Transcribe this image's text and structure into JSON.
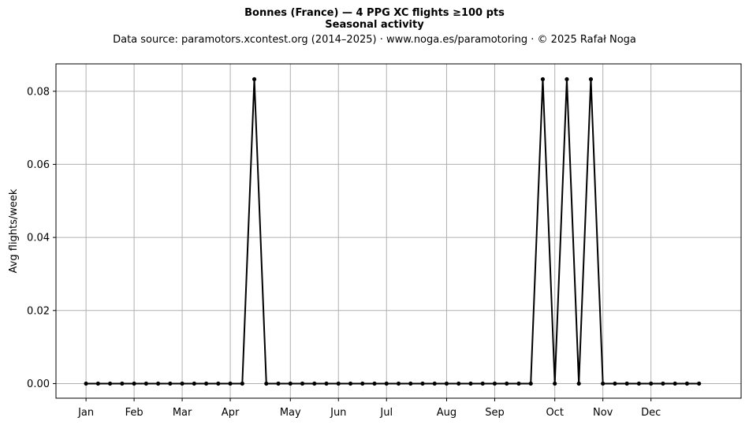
{
  "title": "Bonnes (France)  —  4 PPG XC flights ≥100 pts",
  "subtitle": "Seasonal activity",
  "source_line": "Data source: paramotors.xcontest.org (2014–2025)  ·  www.noga.es/paramotoring  ·  © 2025 Rafał Noga",
  "chart_data": {
    "type": "line",
    "title": "Bonnes (France)  —  4 PPG XC flights ≥100 pts",
    "subtitle": "Seasonal activity",
    "xlabel": "",
    "ylabel": "Avg flights/week",
    "x_unit": "week of year",
    "x_ticks": [
      {
        "week": 1,
        "label": "Jan"
      },
      {
        "week": 5,
        "label": "Feb"
      },
      {
        "week": 9,
        "label": "Mar"
      },
      {
        "week": 13,
        "label": "Apr"
      },
      {
        "week": 18,
        "label": "May"
      },
      {
        "week": 22,
        "label": "Jun"
      },
      {
        "week": 26,
        "label": "Jul"
      },
      {
        "week": 31,
        "label": "Aug"
      },
      {
        "week": 35,
        "label": "Sep"
      },
      {
        "week": 40,
        "label": "Oct"
      },
      {
        "week": 44,
        "label": "Nov"
      },
      {
        "week": 48,
        "label": "Dec"
      }
    ],
    "xlim": [
      -1.5,
      55.5
    ],
    "ylim": [
      -0.004,
      0.0875
    ],
    "y_ticks": [
      0.0,
      0.02,
      0.04,
      0.06,
      0.08
    ],
    "y_tick_labels": [
      "0.00",
      "0.02",
      "0.04",
      "0.06",
      "0.08"
    ],
    "grid": true,
    "series": [
      {
        "color": "#000000",
        "marker": "dot",
        "x": [
          1,
          2,
          3,
          4,
          5,
          6,
          7,
          8,
          9,
          10,
          11,
          12,
          13,
          14,
          15,
          16,
          17,
          18,
          19,
          20,
          21,
          22,
          23,
          24,
          25,
          26,
          27,
          28,
          29,
          30,
          31,
          32,
          33,
          34,
          35,
          36,
          37,
          38,
          39,
          40,
          41,
          42,
          43,
          44,
          45,
          46,
          47,
          48,
          49,
          50,
          51,
          52
        ],
        "y": [
          0,
          0,
          0,
          0,
          0,
          0,
          0,
          0,
          0,
          0,
          0,
          0,
          0,
          0,
          0.0833,
          0,
          0,
          0,
          0,
          0,
          0,
          0,
          0,
          0,
          0,
          0,
          0,
          0,
          0,
          0,
          0,
          0,
          0,
          0,
          0,
          0,
          0,
          0,
          0.0833,
          0,
          0.0833,
          0,
          0.0833,
          0,
          0,
          0,
          0,
          0,
          0,
          0,
          0,
          0
        ]
      }
    ]
  }
}
